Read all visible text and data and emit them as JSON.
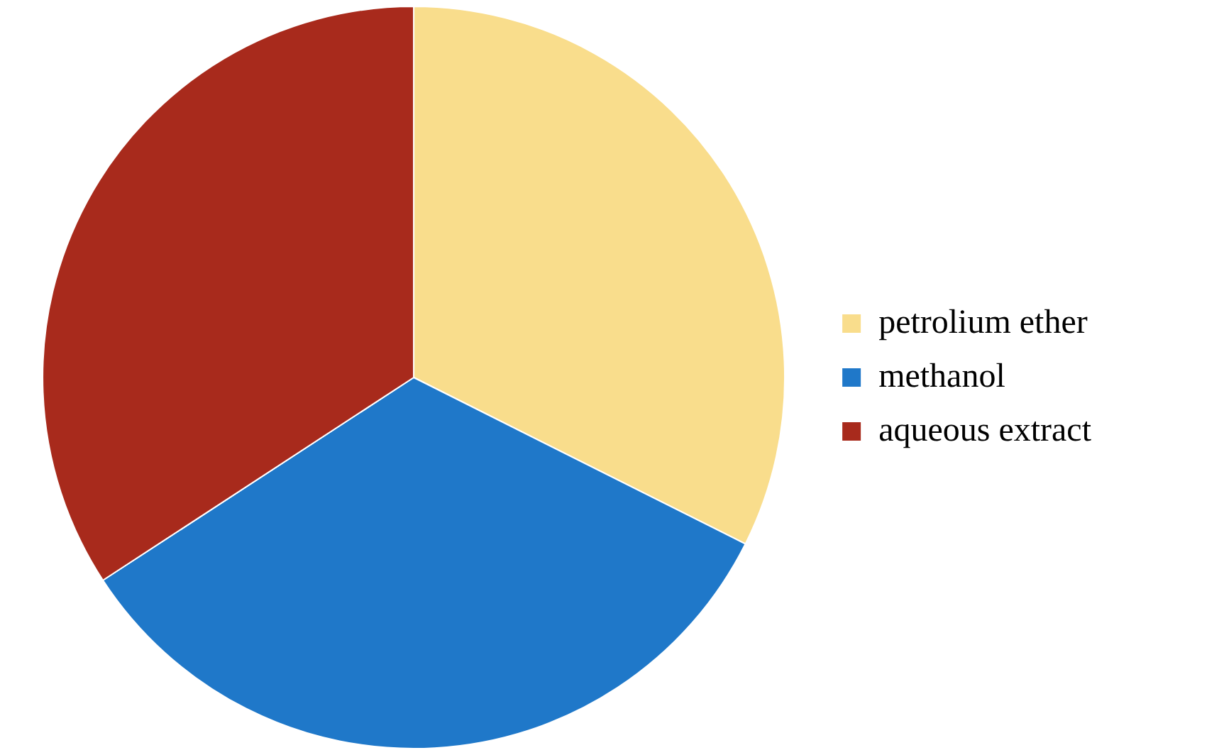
{
  "chart_data": {
    "type": "pie",
    "categories": [
      "petrolium ether",
      "methanol",
      "aqueous extract"
    ],
    "values": [
      32.4,
      33.4,
      34.2
    ],
    "colors": [
      "#f9dd8c",
      "#1f78c9",
      "#a82a1c"
    ],
    "legend": "right"
  }
}
